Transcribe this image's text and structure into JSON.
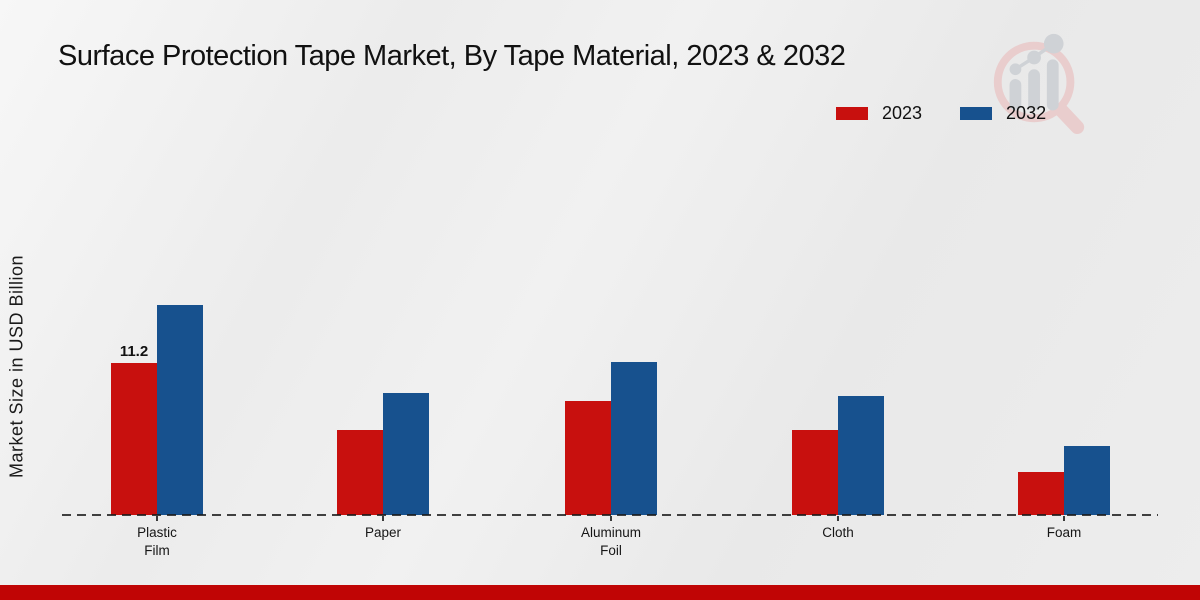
{
  "page_title": "Surface Protection Tape Market, By Tape Material, 2023 & 2032",
  "y_axis_label": "Market Size in USD Billion",
  "legend": {
    "items": [
      {
        "label": "2023",
        "color": "#c8100e"
      },
      {
        "label": "2032",
        "color": "#17518e"
      }
    ]
  },
  "watermark_icon": "magnifier-bar-chart-logo",
  "colors": {
    "series_2023": "#c8100e",
    "series_2032": "#17518e",
    "bottom_ribbon": "#c00505",
    "baseline": "#2a2a2a",
    "background": "#ededed"
  },
  "chart_data": {
    "type": "bar",
    "title": "Surface Protection Tape Market, By Tape Material, 2023 & 2032",
    "categories": [
      "Plastic Film",
      "Paper",
      "Aluminum Foil",
      "Cloth",
      "Foam"
    ],
    "category_label_lines": [
      [
        "Plastic",
        "Film"
      ],
      [
        "Paper"
      ],
      [
        "Aluminum",
        "Foil"
      ],
      [
        "Cloth"
      ],
      [
        "Foam"
      ]
    ],
    "series": [
      {
        "name": "2023",
        "color": "#c8100e",
        "values": [
          11.2,
          6.3,
          8.4,
          6.3,
          3.2
        ]
      },
      {
        "name": "2032",
        "color": "#17518e",
        "values": [
          15.5,
          9.0,
          11.3,
          8.8,
          5.1
        ]
      }
    ],
    "value_labels": [
      {
        "series": "2023",
        "category": "Plastic Film",
        "text": "11.2"
      }
    ],
    "xlabel": "",
    "ylabel": "Market Size in USD Billion",
    "ylim": [
      0,
      16
    ],
    "grid": false,
    "y_ticks_visible": false,
    "legend_position": "top-right",
    "baseline_style": "dashed"
  }
}
